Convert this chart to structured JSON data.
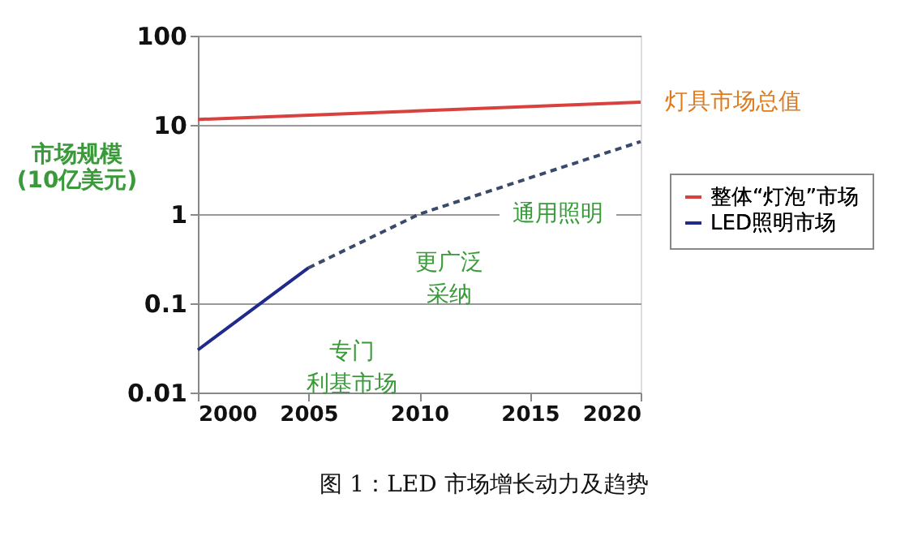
{
  "chart_data": {
    "type": "line",
    "title": "图 1：LED 市场增长动力及趋势",
    "ylabel": "市场规模\n(10亿美元)",
    "series": [
      {
        "name": "整体“灯泡”市场",
        "color": "#d9413f",
        "x": [
          2000,
          2020
        ],
        "values": [
          11.5,
          18
        ],
        "line_style": "solid"
      },
      {
        "name": "LED照明市场",
        "color": "#1f2a8c",
        "x": [
          2000,
          2005
        ],
        "values": [
          0.03,
          0.25
        ],
        "line_style": "solid"
      },
      {
        "color": "#3a4a6a",
        "x": [
          2005,
          2010,
          2020
        ],
        "values": [
          0.25,
          1.0,
          6.5
        ],
        "line_style": "dashed"
      }
    ],
    "xlim": [
      2000,
      2020
    ],
    "xticks": [
      2000,
      2005,
      2010,
      2015,
      2020
    ],
    "ylim": [
      0.01,
      100
    ],
    "yticks": [
      0.01,
      0.1,
      1,
      10,
      100
    ],
    "log": true,
    "grid": "y",
    "legend": "right",
    "annotations": [
      {
        "text": "灯具市场总值",
        "x": 2020,
        "y": 18
      },
      "专门利基市场",
      "更广泛采纳",
      "通用照明"
    ]
  }
}
